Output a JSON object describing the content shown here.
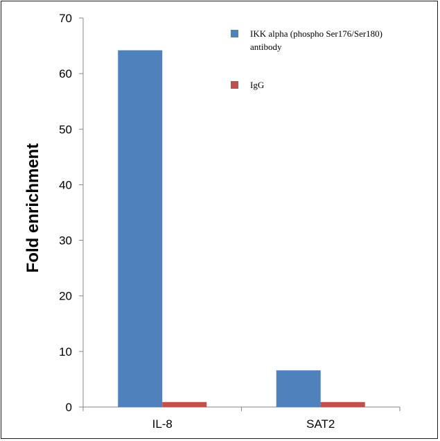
{
  "chart_data": {
    "type": "bar",
    "title": "",
    "xlabel": "",
    "ylabel": "Fold enrichment",
    "ylim": [
      0,
      70
    ],
    "yticks": [
      0,
      10,
      20,
      30,
      40,
      50,
      60,
      70
    ],
    "categories": [
      "IL-8",
      "SAT2"
    ],
    "grid": false,
    "legend_position": "top-right",
    "series": [
      {
        "name": "IKK alpha (phospho Ser176/Ser180) antibody",
        "name_lines": [
          "IKK alpha (phospho Ser176/Ser180)",
          "antibody"
        ],
        "color": "#4f81bd",
        "values": [
          64.2,
          6.6
        ]
      },
      {
        "name": "IgG",
        "name_lines": [
          "IgG"
        ],
        "color": "#c0504d",
        "values": [
          0.9,
          0.9
        ]
      }
    ]
  }
}
